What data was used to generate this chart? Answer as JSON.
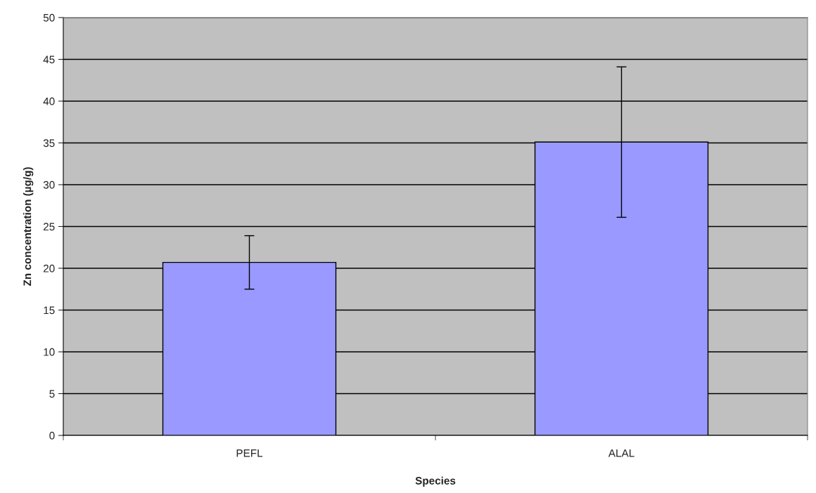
{
  "chart_data": {
    "type": "bar",
    "xlabel": "Species",
    "ylabel": "Zn concentration (µg/g)",
    "categories": [
      "PEFL",
      "ALAL"
    ],
    "series": [
      {
        "color": "#9999ff",
        "values": [
          20.7,
          35.1
        ],
        "errors": [
          3.2,
          9.0
        ]
      }
    ],
    "ylim": [
      0,
      50
    ],
    "yticks": [
      0,
      5,
      10,
      15,
      20,
      25,
      30,
      35,
      40,
      45,
      50
    ],
    "grid": "y",
    "legend": false
  }
}
